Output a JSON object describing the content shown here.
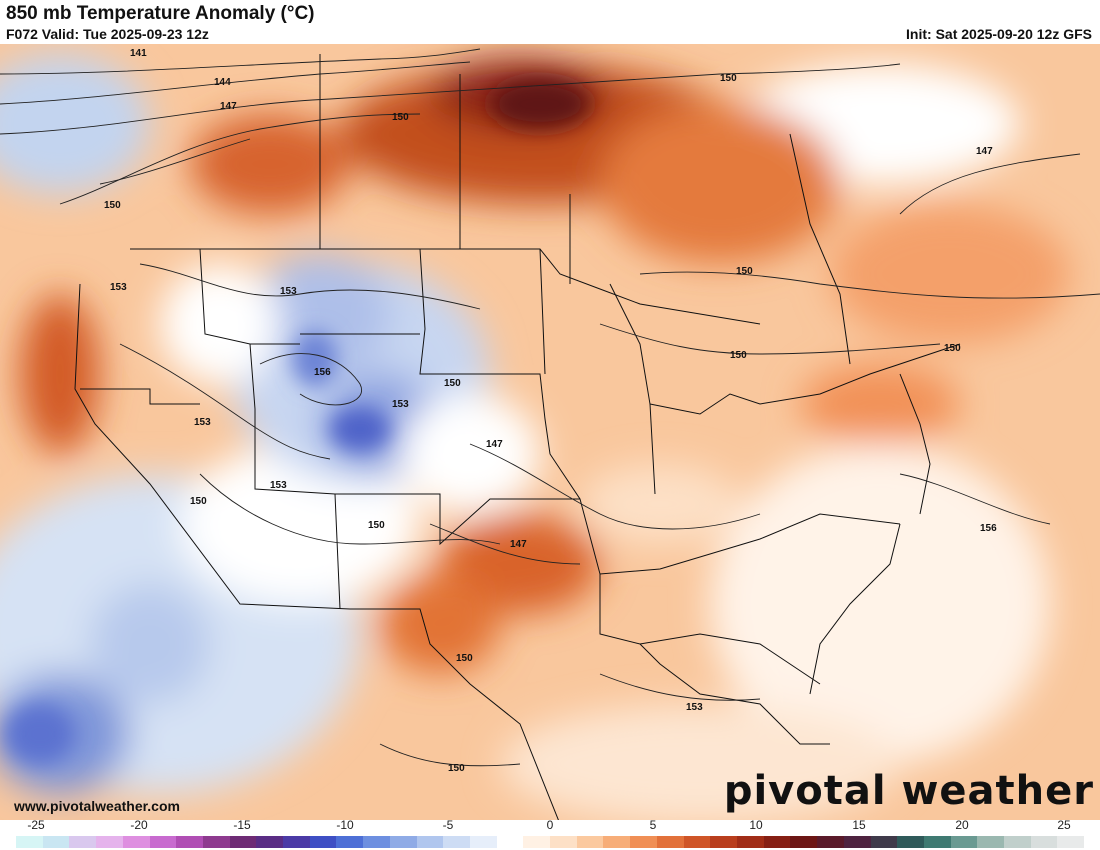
{
  "header": {
    "title": "850 mb Temperature Anomaly (°C)",
    "valid": "F072 Valid: Tue 2025-09-23 12z",
    "init": "Init: Sat 2025-09-20 12z GFS"
  },
  "contour_labels": [
    "141",
    "144",
    "147",
    "150",
    "150",
    "147",
    "150",
    "153",
    "153",
    "156",
    "150",
    "153",
    "147",
    "150",
    "153",
    "150",
    "147",
    "150",
    "150",
    "150",
    "150",
    "156",
    "153",
    "150"
  ],
  "footer": {
    "url": "www.pivotalweather.com",
    "brand": "pivotal weather"
  },
  "colorbar": {
    "ticks": [
      "-25",
      "-20",
      "-15",
      "-10",
      "-5",
      "0",
      "5",
      "10",
      "15",
      "20",
      "25"
    ],
    "colors": [
      "#d6f5f5",
      "#c9e6f2",
      "#d9c8ee",
      "#e5b3ec",
      "#de8fe0",
      "#c86bcf",
      "#b04eb4",
      "#8e3a8f",
      "#6e2b75",
      "#5a2d85",
      "#4b3aa6",
      "#3e4fc4",
      "#4d6fd6",
      "#6d8fe0",
      "#8fabe6",
      "#b0c6ee",
      "#cddcf4",
      "#e6eefa",
      "#ffffff",
      "#fff1e4",
      "#fde0c6",
      "#fbc99f",
      "#f7ad78",
      "#f08f55",
      "#e2713a",
      "#cf5527",
      "#b93e1d",
      "#a12d17",
      "#861f14",
      "#6c1615",
      "#5a1a2a",
      "#4e2340",
      "#3f3a4a",
      "#2f5a5a",
      "#3f7a72",
      "#6a9a92",
      "#9ab8b0",
      "#c0cfcb",
      "#d8dedd",
      "#e8eaea"
    ]
  }
}
